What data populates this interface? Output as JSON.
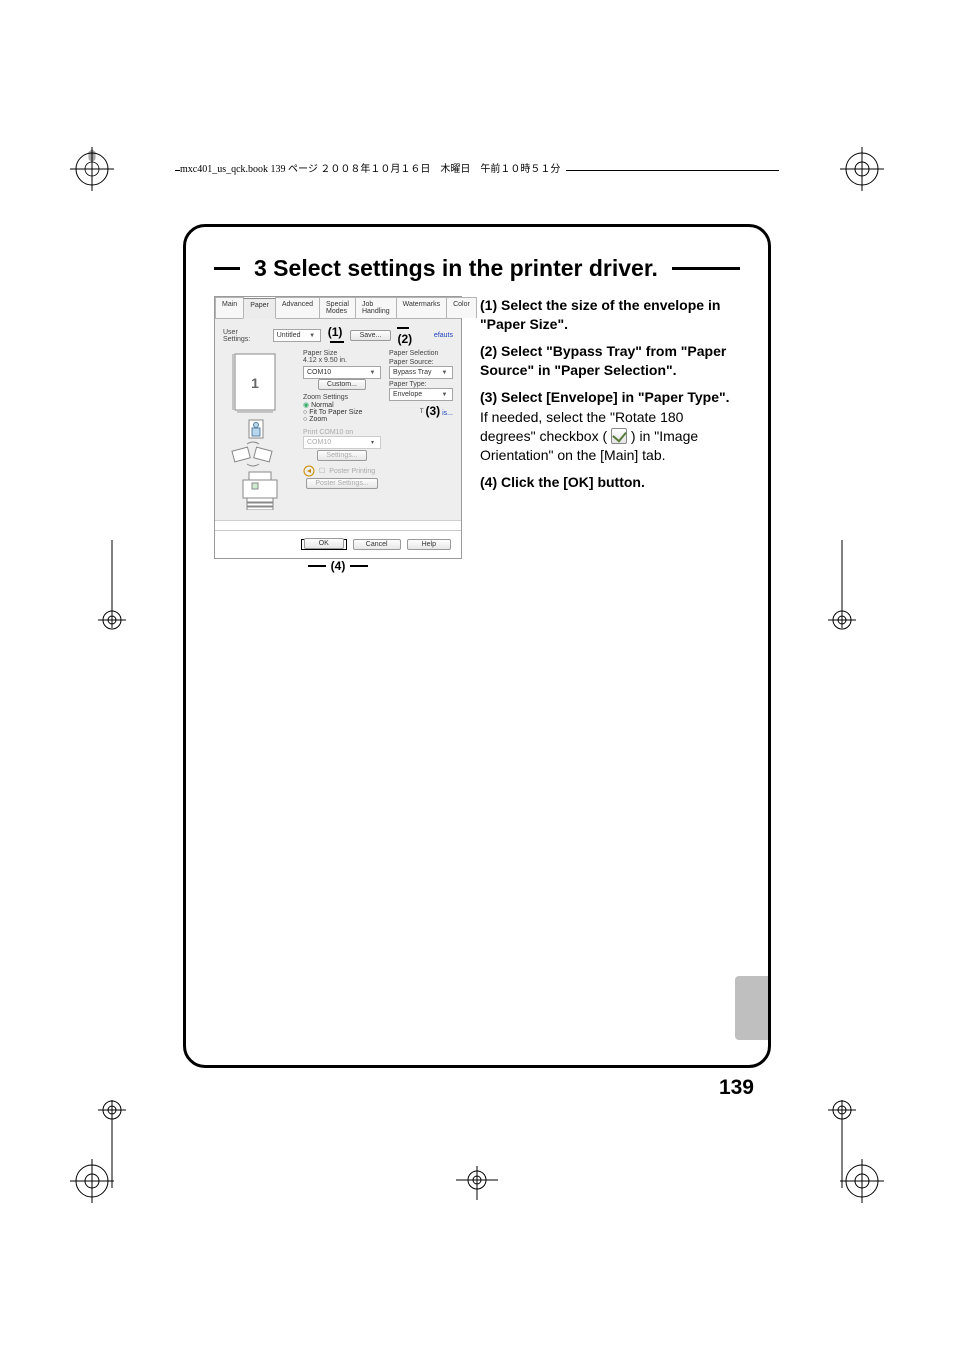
{
  "header_text": "mxc401_us_qck.book  139 ページ   ２００８年１０月１６日　木曜日　午前１０時５１分",
  "page_number": "139",
  "step": {
    "title": "3 Select settings in the printer driver."
  },
  "instructions": [
    {
      "num": "(1)",
      "bold": "Select the size of the envelope in \"Paper Size\"."
    },
    {
      "num": "(2)",
      "bold": "Select \"Bypass Tray\" from \"Paper Source\" in \"Paper Selection\"."
    },
    {
      "num": "(3)",
      "bold": "Select [Envelope] in \"Paper Type\".",
      "detail": "If needed, select the \"Rotate 180 degrees\" checkbox ( CHK ) in \"Image Orientation\" on the [Main] tab."
    },
    {
      "num": "(4)",
      "bold": "Click the [OK] button."
    }
  ],
  "dialog": {
    "tabs": [
      "Main",
      "Paper",
      "Advanced",
      "Special Modes",
      "Job Handling",
      "Watermarks",
      "Color"
    ],
    "active_tab": 1,
    "user_settings_label": "User Settings:",
    "user_settings_value": "Untitled",
    "save_btn": "Save...",
    "defaults_link": "efauts",
    "paper_size_label": "Paper Size",
    "paper_size_dim": "4.12 x 9.50 in.",
    "paper_size_value": "COM10",
    "custom_btn": "Custom...",
    "zoom_label": "Zoom Settings",
    "zoom_normal": "Normal",
    "zoom_fit": "Fit To Paper Size",
    "zoom_zoom": "Zoom",
    "print_on_label": "Print COM10 on",
    "print_on_value": "COM10",
    "settings_btn": "Settings...",
    "poster_chk": "Poster Printing",
    "poster_btn": "Poster Settings...",
    "paper_selection_label": "Paper Selection",
    "paper_source_label": "Paper Source:",
    "paper_source_value": "Bypass Tray",
    "paper_type_label": "Paper Type:",
    "paper_type_value": "Envelope",
    "n_is": "is...",
    "preview_num": "1",
    "callouts": {
      "c1": "(1)",
      "c2": "(2)",
      "c3": "(3)",
      "c4": "(4)"
    },
    "ok": "OK",
    "cancel": "Cancel",
    "help": "Help"
  },
  "colors": {
    "frame": "#000000",
    "dlg_bg": "#eeeeee",
    "tab_border": "#b4b4b4",
    "link": "#1a3fbf",
    "sidetab": "#bfbfbf"
  }
}
